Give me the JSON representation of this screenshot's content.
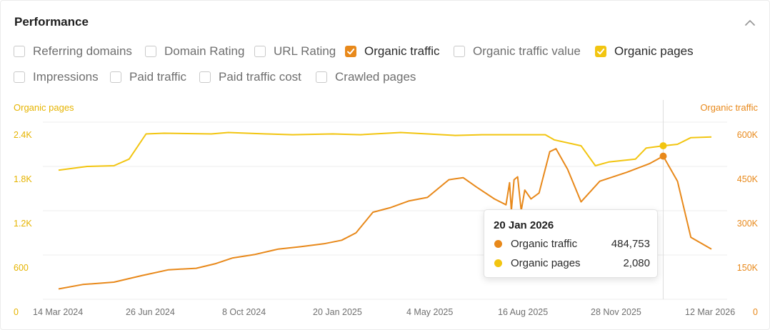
{
  "header": {
    "title": "Performance",
    "collapse_icon": "chevron-up-icon"
  },
  "metrics": [
    {
      "label": "Referring domains",
      "checked": false
    },
    {
      "label": "Domain Rating",
      "checked": false
    },
    {
      "label": "URL Rating",
      "checked": false
    },
    {
      "label": "Organic traffic",
      "checked": true,
      "color": "#e8891b"
    },
    {
      "label": "Organic traffic value",
      "checked": false
    },
    {
      "label": "Organic pages",
      "checked": true,
      "color": "#f2c511"
    },
    {
      "label": "Impressions",
      "checked": false
    },
    {
      "label": "Paid traffic",
      "checked": false
    },
    {
      "label": "Paid traffic cost",
      "checked": false
    },
    {
      "label": "Crawled pages",
      "checked": false
    }
  ],
  "colors": {
    "traffic": "#e8891b",
    "pages": "#f2c511",
    "pages_text": "#e6b400",
    "traffic_text": "#e8891b"
  },
  "chart_data": {
    "type": "line",
    "x_ticks": [
      "14 Mar 2024",
      "26 Jun 2024",
      "8 Oct 2024",
      "20 Jan 2025",
      "4 May 2025",
      "16 Aug 2025",
      "28 Nov 2025",
      "12 Mar 2026"
    ],
    "left_axis": {
      "title": "Organic pages",
      "ticks": [
        "0",
        "600",
        "1.2K",
        "1.8K",
        "2.4K"
      ],
      "ylim": [
        0,
        2400
      ]
    },
    "right_axis": {
      "title": "Organic traffic",
      "ticks": [
        "0",
        "150K",
        "300K",
        "450K",
        "600K"
      ],
      "ylim": [
        0,
        600000
      ]
    },
    "grid": true,
    "series": [
      {
        "name": "Organic traffic",
        "axis": "right",
        "points": [
          [
            "2024-03-14",
            35000
          ],
          [
            "2024-04-10",
            50000
          ],
          [
            "2024-05-15",
            58000
          ],
          [
            "2024-06-15",
            80000
          ],
          [
            "2024-07-15",
            100000
          ],
          [
            "2024-08-15",
            105000
          ],
          [
            "2024-09-05",
            120000
          ],
          [
            "2024-09-25",
            140000
          ],
          [
            "2024-10-20",
            152000
          ],
          [
            "2024-11-15",
            170000
          ],
          [
            "2024-12-10",
            178000
          ],
          [
            "2025-01-05",
            188000
          ],
          [
            "2025-01-25",
            200000
          ],
          [
            "2025-02-10",
            225000
          ],
          [
            "2025-03-01",
            295000
          ],
          [
            "2025-03-20",
            310000
          ],
          [
            "2025-04-10",
            333000
          ],
          [
            "2025-05-01",
            345000
          ],
          [
            "2025-05-25",
            405000
          ],
          [
            "2025-06-10",
            412000
          ],
          [
            "2025-06-25",
            380000
          ],
          [
            "2025-07-15",
            340000
          ],
          [
            "2025-07-28",
            320000
          ],
          [
            "2025-08-01",
            395000
          ],
          [
            "2025-08-03",
            300000
          ],
          [
            "2025-08-06",
            405000
          ],
          [
            "2025-08-10",
            415000
          ],
          [
            "2025-08-14",
            300000
          ],
          [
            "2025-08-18",
            370000
          ],
          [
            "2025-08-25",
            340000
          ],
          [
            "2025-09-03",
            360000
          ],
          [
            "2025-09-15",
            500000
          ],
          [
            "2025-09-22",
            510000
          ],
          [
            "2025-10-05",
            440000
          ],
          [
            "2025-10-20",
            330000
          ],
          [
            "2025-11-10",
            400000
          ],
          [
            "2025-12-10",
            430000
          ],
          [
            "2026-01-05",
            460000
          ],
          [
            "2026-01-20",
            484753
          ],
          [
            "2026-02-05",
            400000
          ],
          [
            "2026-02-20",
            210000
          ],
          [
            "2026-03-15",
            170000
          ]
        ]
      },
      {
        "name": "Organic pages",
        "axis": "left",
        "points": [
          [
            "2024-03-14",
            1750
          ],
          [
            "2024-04-15",
            1800
          ],
          [
            "2024-05-15",
            1810
          ],
          [
            "2024-06-01",
            1900
          ],
          [
            "2024-06-20",
            2240
          ],
          [
            "2024-07-10",
            2250
          ],
          [
            "2024-09-01",
            2240
          ],
          [
            "2024-09-20",
            2260
          ],
          [
            "2024-11-01",
            2240
          ],
          [
            "2024-12-01",
            2230
          ],
          [
            "2025-01-15",
            2240
          ],
          [
            "2025-02-15",
            2230
          ],
          [
            "2025-04-01",
            2260
          ],
          [
            "2025-05-01",
            2240
          ],
          [
            "2025-06-01",
            2220
          ],
          [
            "2025-07-01",
            2230
          ],
          [
            "2025-08-15",
            2230
          ],
          [
            "2025-09-10",
            2230
          ],
          [
            "2025-09-20",
            2160
          ],
          [
            "2025-10-20",
            2080
          ],
          [
            "2025-11-05",
            1810
          ],
          [
            "2025-11-20",
            1860
          ],
          [
            "2025-12-20",
            1900
          ],
          [
            "2026-01-01",
            2050
          ],
          [
            "2026-01-20",
            2080
          ],
          [
            "2026-02-05",
            2100
          ],
          [
            "2026-02-20",
            2190
          ],
          [
            "2026-03-15",
            2200
          ]
        ]
      }
    ],
    "hover_date": "2026-01-20"
  },
  "tooltip": {
    "date": "20 Jan 2026",
    "rows": [
      {
        "label": "Organic traffic",
        "value": "484,753"
      },
      {
        "label": "Organic pages",
        "value": "2,080"
      }
    ]
  }
}
